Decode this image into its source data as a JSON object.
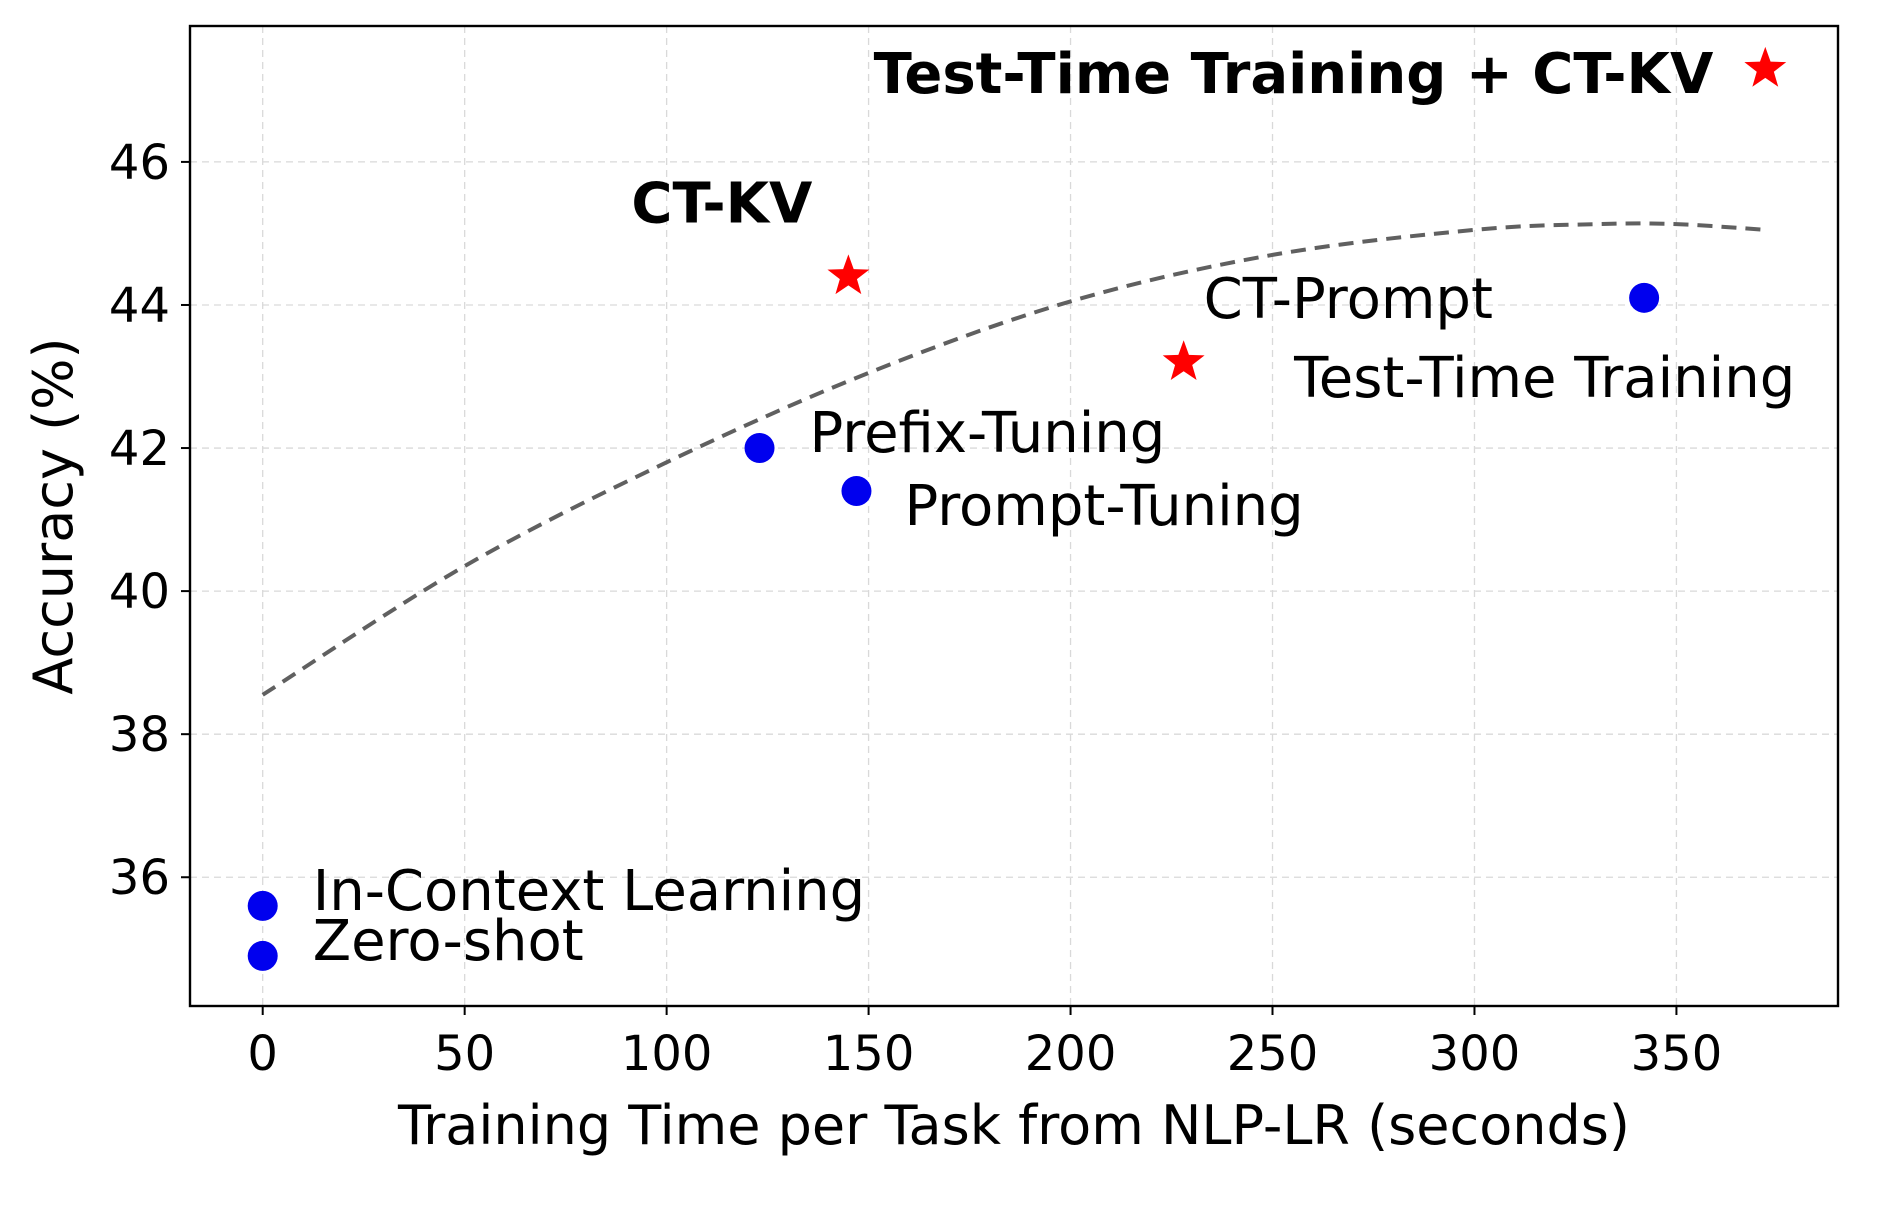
{
  "chart_data": {
    "type": "scatter",
    "title": "",
    "xlabel": "Training Time per Task from NLP-LR (seconds)",
    "ylabel": "Accuracy (%)",
    "xlim": [
      -18,
      390
    ],
    "ylim": [
      34.2,
      47.9
    ],
    "xticks": [
      0,
      50,
      100,
      150,
      200,
      250,
      300,
      350
    ],
    "yticks": [
      36,
      38,
      40,
      42,
      44,
      46
    ],
    "grid": true,
    "legend": "none",
    "colors": {
      "baseline": "#0000ee",
      "ours": "#ff0000",
      "trend": "#606060"
    },
    "points": [
      {
        "label": "Zero-shot",
        "x": 0,
        "y": 34.9,
        "marker": "circle",
        "group": "baseline",
        "bold": false,
        "label_pos": "right"
      },
      {
        "label": "In-Context Learning",
        "x": 0,
        "y": 35.6,
        "marker": "circle",
        "group": "baseline",
        "bold": false,
        "label_pos": "right"
      },
      {
        "label": "Prefix-Tuning",
        "x": 123,
        "y": 42.0,
        "marker": "circle",
        "group": "baseline",
        "bold": false,
        "label_pos": "right"
      },
      {
        "label": "Prompt-Tuning",
        "x": 147,
        "y": 41.4,
        "marker": "circle",
        "group": "baseline",
        "bold": false,
        "label_pos": "below-right"
      },
      {
        "label": "Test-Time Training",
        "x": 342,
        "y": 44.1,
        "marker": "circle",
        "group": "baseline",
        "bold": false,
        "label_pos": "below-left"
      },
      {
        "label": "CT-KV",
        "x": 145,
        "y": 44.4,
        "marker": "star",
        "group": "ours",
        "bold": true,
        "label_pos": "above-left"
      },
      {
        "label": "CT-Prompt",
        "x": 228,
        "y": 43.2,
        "marker": "star",
        "group": "ours",
        "bold": false,
        "label_pos": "above-right"
      },
      {
        "label": "Test-Time Training + CT-KV",
        "x": 372,
        "y": 47.3,
        "marker": "star",
        "group": "ours",
        "bold": true,
        "label_pos": "left"
      }
    ],
    "trend_line": {
      "style": "dashed",
      "x": [
        0,
        50,
        100,
        150,
        200,
        250,
        300,
        330,
        350,
        372
      ],
      "y": [
        38.55,
        40.35,
        41.8,
        43.05,
        44.05,
        44.7,
        45.05,
        45.13,
        45.13,
        45.05
      ]
    }
  }
}
